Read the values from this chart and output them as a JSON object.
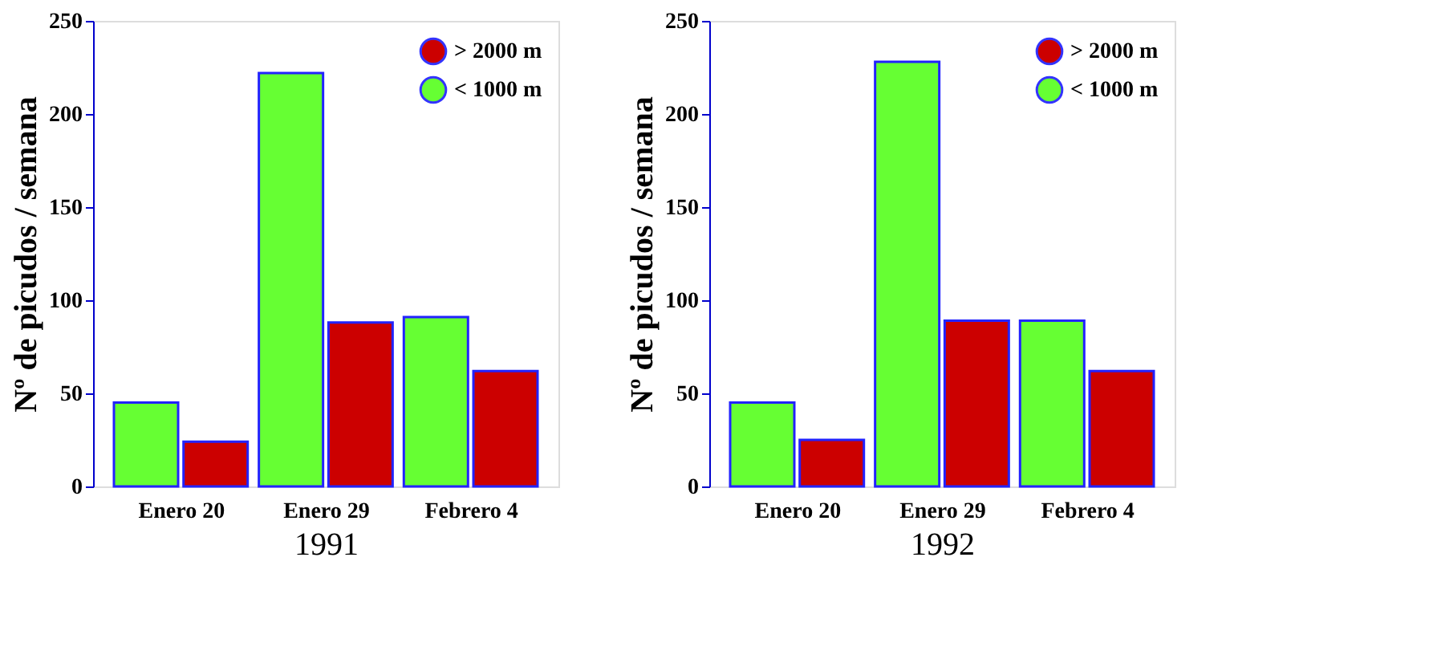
{
  "chart_data": [
    {
      "type": "bar",
      "xlabel": "1991",
      "ylabel": "Nº de picudos / semana",
      "categories": [
        "Enero 20",
        "Enero 29",
        "Febrero 4"
      ],
      "series": [
        {
          "name": "< 1000 m",
          "color": "#66ff33",
          "values": [
            45,
            222,
            91
          ]
        },
        {
          "name": "> 2000 m",
          "color": "#cc0000",
          "values": [
            24,
            88,
            62
          ]
        }
      ],
      "ylim": [
        0,
        250
      ],
      "yticks": [
        0,
        50,
        100,
        150,
        200,
        250
      ],
      "grid": false,
      "legend": "top right"
    },
    {
      "type": "bar",
      "xlabel": "1992",
      "ylabel": "Nº de picudos / semana",
      "categories": [
        "Enero 20",
        "Enero 29",
        "Febrero 4"
      ],
      "series": [
        {
          "name": "< 1000 m",
          "color": "#66ff33",
          "values": [
            45,
            228,
            89
          ]
        },
        {
          "name": "> 2000 m",
          "color": "#cc0000",
          "values": [
            25,
            89,
            62
          ]
        }
      ],
      "ylim": [
        0,
        250
      ],
      "yticks": [
        0,
        50,
        100,
        150,
        200,
        250
      ],
      "grid": false,
      "legend": "top right"
    }
  ]
}
